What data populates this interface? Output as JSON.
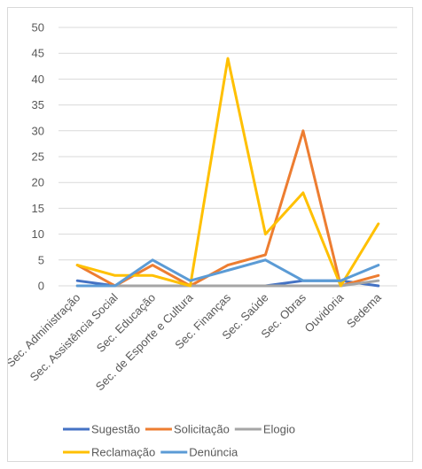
{
  "chart_data": {
    "type": "line",
    "categories": [
      "Sec. Administração",
      "Sec. Assistência Social",
      "Sec. Educação",
      "Sec. de Esporte e Cultura",
      "Sec. Finanças",
      "Sec. Saúde",
      "Sec. Obras",
      "Ouvidoria",
      "Sedema"
    ],
    "ylim": [
      0,
      50
    ],
    "yticks": [
      0,
      5,
      10,
      15,
      20,
      25,
      30,
      35,
      40,
      45,
      50
    ],
    "grid": true,
    "legend_position": "bottom",
    "series": [
      {
        "name": "Sugestão",
        "color": "#4472C4",
        "values": [
          1,
          0,
          0,
          0,
          0,
          0,
          1,
          1,
          0
        ]
      },
      {
        "name": "Solicitação",
        "color": "#ED7D31",
        "values": [
          4,
          0,
          4,
          0,
          4,
          6,
          30,
          0,
          2
        ]
      },
      {
        "name": "Elogio",
        "color": "#A5A5A5",
        "values": [
          0,
          0,
          0,
          0,
          0,
          0,
          0,
          0,
          1
        ]
      },
      {
        "name": "Reclamação",
        "color": "#FFC000",
        "values": [
          4,
          2,
          2,
          0,
          44,
          10,
          18,
          0,
          12
        ]
      },
      {
        "name": "Denúncia",
        "color": "#5B9BD5",
        "values": [
          0,
          0,
          5,
          1,
          3,
          5,
          1,
          1,
          4
        ]
      }
    ]
  }
}
